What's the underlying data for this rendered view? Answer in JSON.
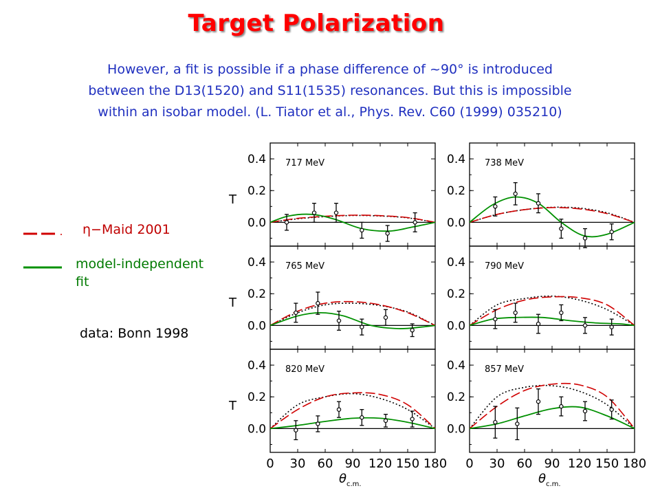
{
  "title": "Target Polarization",
  "subtitle_lines": [
    "However, a fit is possible if a phase difference of ~90° is introduced",
    "between the D13(1520) and S11(1535) resonances. But this is impossible",
    "within an isobar model. (L. Tiator et al., Phys. Rev. C60 (1999) 035210)"
  ],
  "legend": {
    "maid_label": "η−Maid 2001",
    "fit_label_lines": [
      "model-independent",
      "fit"
    ],
    "data_label": "data: Bonn 1998"
  },
  "colors": {
    "title": "#ff0000",
    "subtitle": "#1f2fbf",
    "maid": "#d00000",
    "fit": "#009000",
    "dotted": "#000000"
  },
  "chart_data": {
    "type": "line",
    "grid": false,
    "xlim": [
      0,
      180
    ],
    "ylim": [
      -0.15,
      0.5
    ],
    "xticks": [
      "0",
      "30",
      "60",
      "90",
      "120",
      "150",
      "180"
    ],
    "yticks": [
      "0.0",
      "0.2",
      "0.4"
    ],
    "ylabel": "T",
    "xlabel": "θ",
    "xlabel_sub": "c.m.",
    "panels": [
      {
        "label": "717 MeV",
        "maid": [
          [
            0,
            0
          ],
          [
            30,
            0.025
          ],
          [
            60,
            0.038
          ],
          [
            90,
            0.045
          ],
          [
            120,
            0.042
          ],
          [
            150,
            0.03
          ],
          [
            180,
            0
          ]
        ],
        "dotted": [
          [
            0,
            0
          ],
          [
            30,
            0.022
          ],
          [
            60,
            0.036
          ],
          [
            90,
            0.043
          ],
          [
            120,
            0.04
          ],
          [
            150,
            0.028
          ],
          [
            180,
            0
          ]
        ],
        "fit": [
          [
            0,
            0
          ],
          [
            20,
            0.04
          ],
          [
            45,
            0.05
          ],
          [
            70,
            0.02
          ],
          [
            100,
            -0.04
          ],
          [
            130,
            -0.055
          ],
          [
            155,
            -0.03
          ],
          [
            180,
            0
          ]
        ],
        "points": [
          [
            18,
            0.0,
            0.05
          ],
          [
            48,
            0.06,
            0.06
          ],
          [
            72,
            0.06,
            0.06
          ],
          [
            100,
            -0.05,
            0.05
          ],
          [
            128,
            -0.07,
            0.05
          ],
          [
            158,
            0.0,
            0.06
          ]
        ]
      },
      {
        "label": "738 MeV",
        "maid": [
          [
            0,
            0
          ],
          [
            30,
            0.05
          ],
          [
            60,
            0.08
          ],
          [
            90,
            0.093
          ],
          [
            120,
            0.085
          ],
          [
            150,
            0.055
          ],
          [
            180,
            0
          ]
        ],
        "dotted": [
          [
            0,
            0
          ],
          [
            30,
            0.05
          ],
          [
            60,
            0.08
          ],
          [
            90,
            0.095
          ],
          [
            120,
            0.09
          ],
          [
            150,
            0.06
          ],
          [
            180,
            0
          ]
        ],
        "fit": [
          [
            0,
            0
          ],
          [
            25,
            0.11
          ],
          [
            50,
            0.16
          ],
          [
            75,
            0.12
          ],
          [
            100,
            0.0
          ],
          [
            125,
            -0.085
          ],
          [
            150,
            -0.075
          ],
          [
            180,
            0
          ]
        ],
        "points": [
          [
            28,
            0.1,
            0.06
          ],
          [
            50,
            0.18,
            0.07
          ],
          [
            75,
            0.12,
            0.06
          ],
          [
            100,
            -0.04,
            0.06
          ],
          [
            126,
            -0.1,
            0.06
          ],
          [
            155,
            -0.06,
            0.05
          ]
        ]
      },
      {
        "label": "765 MeV",
        "maid": [
          [
            0,
            0
          ],
          [
            30,
            0.09
          ],
          [
            60,
            0.14
          ],
          [
            90,
            0.15
          ],
          [
            120,
            0.13
          ],
          [
            150,
            0.08
          ],
          [
            180,
            0
          ]
        ],
        "dotted": [
          [
            0,
            0
          ],
          [
            30,
            0.08
          ],
          [
            60,
            0.13
          ],
          [
            90,
            0.14
          ],
          [
            120,
            0.125
          ],
          [
            150,
            0.085
          ],
          [
            180,
            0
          ]
        ],
        "fit": [
          [
            0,
            0
          ],
          [
            30,
            0.06
          ],
          [
            55,
            0.08
          ],
          [
            80,
            0.06
          ],
          [
            110,
            0.0
          ],
          [
            140,
            -0.02
          ],
          [
            165,
            -0.01
          ],
          [
            180,
            0
          ]
        ],
        "points": [
          [
            28,
            0.08,
            0.06
          ],
          [
            52,
            0.14,
            0.07
          ],
          [
            75,
            0.03,
            0.06
          ],
          [
            100,
            -0.01,
            0.05
          ],
          [
            126,
            0.05,
            0.05
          ],
          [
            155,
            -0.03,
            0.04
          ]
        ]
      },
      {
        "label": "790 MeV",
        "maid": [
          [
            0,
            0
          ],
          [
            30,
            0.1
          ],
          [
            60,
            0.16
          ],
          [
            90,
            0.18
          ],
          [
            120,
            0.175
          ],
          [
            150,
            0.13
          ],
          [
            180,
            0
          ]
        ],
        "dotted": [
          [
            0,
            0
          ],
          [
            30,
            0.13
          ],
          [
            60,
            0.17
          ],
          [
            90,
            0.185
          ],
          [
            120,
            0.16
          ],
          [
            150,
            0.1
          ],
          [
            180,
            0
          ]
        ],
        "fit": [
          [
            0,
            0
          ],
          [
            25,
            0.04
          ],
          [
            50,
            0.05
          ],
          [
            80,
            0.05
          ],
          [
            110,
            0.03
          ],
          [
            140,
            0.015
          ],
          [
            165,
            0.01
          ],
          [
            180,
            0
          ]
        ],
        "points": [
          [
            28,
            0.04,
            0.06
          ],
          [
            50,
            0.08,
            0.06
          ],
          [
            75,
            0.01,
            0.06
          ],
          [
            100,
            0.08,
            0.05
          ],
          [
            126,
            0.0,
            0.05
          ],
          [
            155,
            -0.01,
            0.05
          ]
        ]
      },
      {
        "label": "820 MeV",
        "maid": [
          [
            0,
            0
          ],
          [
            30,
            0.12
          ],
          [
            60,
            0.2
          ],
          [
            90,
            0.225
          ],
          [
            120,
            0.215
          ],
          [
            150,
            0.15
          ],
          [
            180,
            0
          ]
        ],
        "dotted": [
          [
            0,
            0
          ],
          [
            30,
            0.15
          ],
          [
            60,
            0.2
          ],
          [
            90,
            0.22
          ],
          [
            120,
            0.19
          ],
          [
            150,
            0.12
          ],
          [
            180,
            0
          ]
        ],
        "fit": [
          [
            0,
            0
          ],
          [
            30,
            0.02
          ],
          [
            60,
            0.045
          ],
          [
            90,
            0.065
          ],
          [
            120,
            0.065
          ],
          [
            150,
            0.04
          ],
          [
            180,
            0
          ]
        ],
        "points": [
          [
            28,
            -0.01,
            0.06
          ],
          [
            52,
            0.03,
            0.05
          ],
          [
            75,
            0.12,
            0.05
          ],
          [
            100,
            0.07,
            0.05
          ],
          [
            126,
            0.05,
            0.04
          ],
          [
            155,
            0.06,
            0.05
          ]
        ]
      },
      {
        "label": "857 MeV",
        "maid": [
          [
            0,
            0
          ],
          [
            30,
            0.14
          ],
          [
            60,
            0.24
          ],
          [
            90,
            0.28
          ],
          [
            120,
            0.275
          ],
          [
            150,
            0.2
          ],
          [
            180,
            0
          ]
        ],
        "dotted": [
          [
            0,
            0
          ],
          [
            30,
            0.2
          ],
          [
            60,
            0.26
          ],
          [
            90,
            0.27
          ],
          [
            120,
            0.235
          ],
          [
            150,
            0.15
          ],
          [
            180,
            0
          ]
        ],
        "fit": [
          [
            0,
            0
          ],
          [
            30,
            0.03
          ],
          [
            60,
            0.08
          ],
          [
            90,
            0.125
          ],
          [
            120,
            0.135
          ],
          [
            150,
            0.08
          ],
          [
            180,
            0
          ]
        ],
        "points": [
          [
            28,
            0.04,
            0.1
          ],
          [
            52,
            0.03,
            0.1
          ],
          [
            75,
            0.17,
            0.08
          ],
          [
            100,
            0.14,
            0.06
          ],
          [
            126,
            0.11,
            0.06
          ],
          [
            155,
            0.12,
            0.06
          ]
        ]
      }
    ]
  }
}
